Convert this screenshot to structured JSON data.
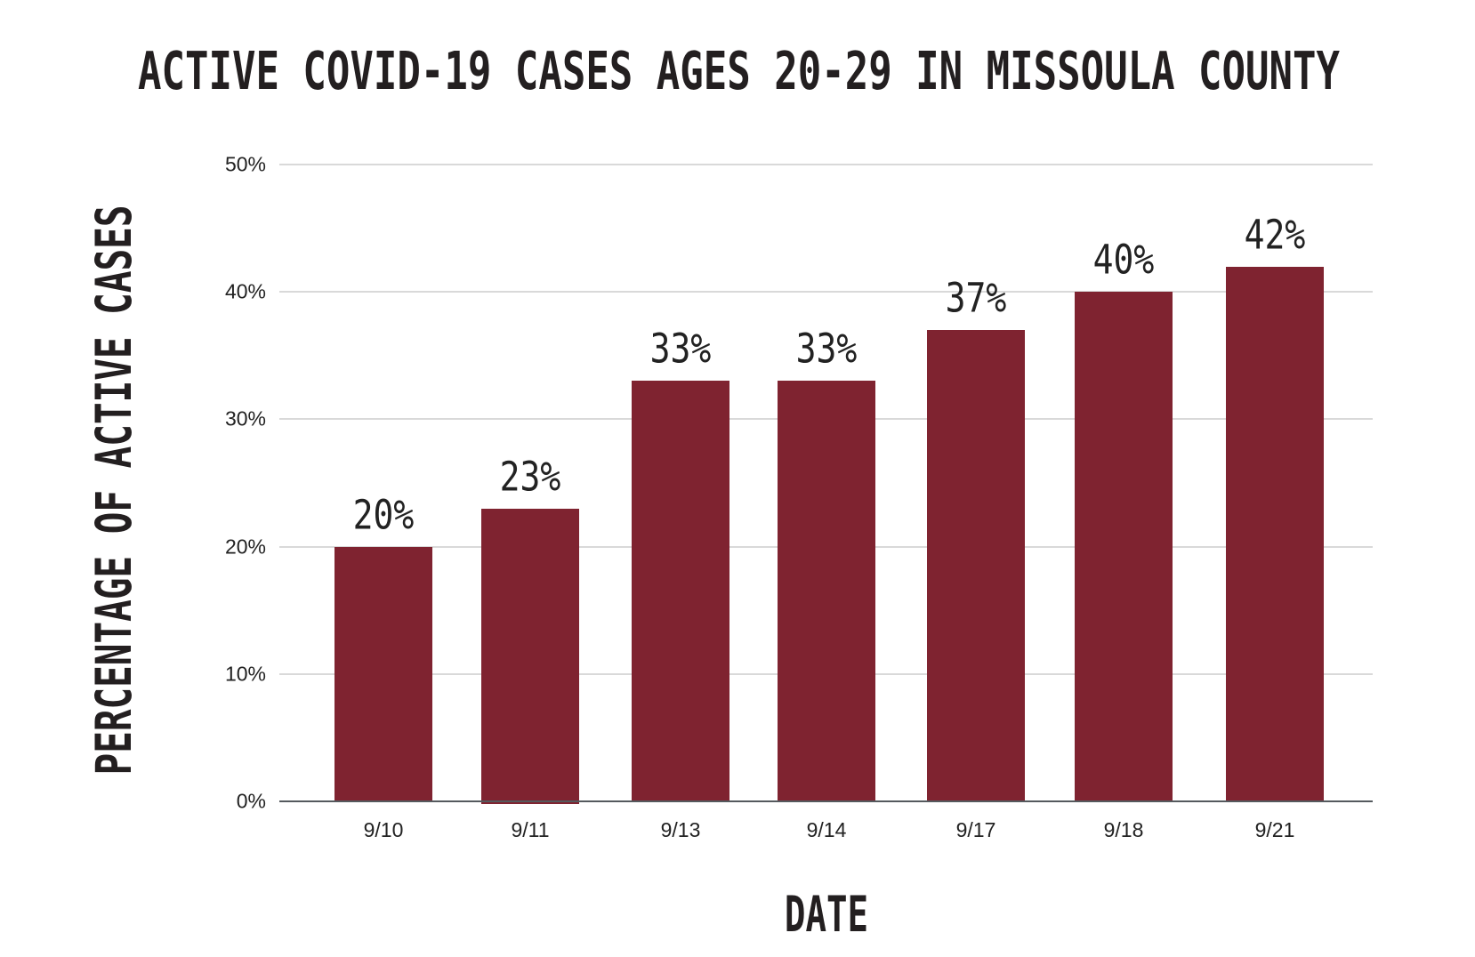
{
  "chart_data": {
    "type": "bar",
    "title": "ACTIVE COVID-19 CASES AGES 20-29 IN MISSOULA COUNTY",
    "xlabel": "DATE",
    "ylabel": "PERCENTAGE OF ACTIVE CASES",
    "categories": [
      "9/10",
      "9/11",
      "9/13",
      "9/14",
      "9/17",
      "9/18",
      "9/21"
    ],
    "values": [
      20,
      23,
      33,
      33,
      37,
      40,
      42
    ],
    "data_labels": [
      "20%",
      "23%",
      "33%",
      "33%",
      "37%",
      "40%",
      "42%"
    ],
    "ylim": [
      0,
      50
    ],
    "yticks": [
      "0%",
      "10%",
      "20%",
      "30%",
      "40%",
      "50%"
    ],
    "ytick_values": [
      0,
      10,
      20,
      30,
      40,
      50
    ],
    "grid": true,
    "legend": "none",
    "bar_color": "#7f2330"
  }
}
